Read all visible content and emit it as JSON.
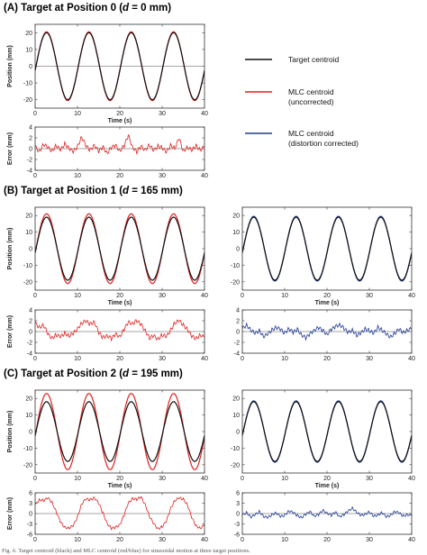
{
  "sections": [
    {
      "title_pre": "(A) Target at Position 0 (",
      "title_d": "d",
      "title_post": " = 0 mm)"
    },
    {
      "title_pre": "(B) Target at Position 1 (",
      "title_d": "d",
      "title_post": " = 165 mm)"
    },
    {
      "title_pre": "(C) Target at Position 2 (",
      "title_d": "d",
      "title_post": " = 195 mm)"
    }
  ],
  "legend": [
    {
      "label_lines": [
        "Target centroid"
      ],
      "color": "#111111"
    },
    {
      "label_lines": [
        "MLC centroid",
        "(uncorrected)"
      ],
      "color": "#e02020"
    },
    {
      "label_lines": [
        "MLC centroid",
        "(distortion corrected)"
      ],
      "color": "#1f3a93"
    }
  ],
  "caption": "Fig. 6. Target centroid (black) and MLC centroid (red/blue) for sinusoidal motion at three target positions.",
  "colors": {
    "target": "#111111",
    "uncorrected": "#e02020",
    "corrected": "#1f3a93"
  },
  "chart_data": [
    {
      "id": "A-position",
      "type": "line",
      "xlabel": "Time (s)",
      "ylabel": "Position (mm)",
      "xlim": [
        0,
        40
      ],
      "ylim": [
        -25,
        25
      ],
      "xticks": [
        0,
        10,
        20,
        30,
        40
      ],
      "yticks": [
        20,
        10,
        0,
        -10,
        -20
      ],
      "zero_line": true,
      "period_s": 10,
      "series": [
        {
          "name": "Target centroid",
          "kind": "target",
          "amplitude": 20
        },
        {
          "name": "MLC centroid (uncorrected)",
          "kind": "uncorrected",
          "amplitude": 20.5
        }
      ]
    },
    {
      "id": "A-error",
      "type": "line",
      "xlabel": "",
      "ylabel": "Error (mm)",
      "xlim": [
        0,
        40
      ],
      "ylim": [
        -4,
        4
      ],
      "xticks": [
        0,
        10,
        20,
        30,
        40
      ],
      "yticks": [
        4,
        2,
        0,
        -2,
        -4
      ],
      "zero_line": true,
      "series": [
        {
          "name": "MLC centroid (uncorrected) error",
          "kind": "uncorrected",
          "x": [
            0,
            1,
            2,
            3,
            4,
            5,
            6,
            7,
            8,
            9,
            10,
            11,
            12,
            13,
            14,
            15,
            16,
            17,
            18,
            19,
            20,
            21,
            22,
            23,
            24,
            25,
            26,
            27,
            28,
            29,
            30,
            31,
            32,
            33,
            34,
            35,
            36,
            37,
            38,
            39,
            40
          ],
          "y": [
            0.3,
            -0.5,
            0.8,
            0.2,
            -0.4,
            0.6,
            -0.3,
            0.9,
            0.1,
            -0.6,
            0.4,
            2.2,
            0.5,
            -0.3,
            0.7,
            -0.5,
            0.3,
            -0.8,
            0.2,
            0.6,
            -0.4,
            0.5,
            2.4,
            0.3,
            -0.6,
            0.4,
            -0.2,
            0.7,
            -0.4,
            0.5,
            0.2,
            -0.7,
            0.6,
            0.1,
            1.9,
            -0.5,
            0.3,
            -0.3,
            0.5,
            -0.2,
            0.3
          ]
        }
      ]
    },
    {
      "id": "B-position-uncorrected",
      "type": "line",
      "xlabel": "Time (s)",
      "ylabel": "Position (mm)",
      "xlim": [
        0,
        40
      ],
      "ylim": [
        -25,
        25
      ],
      "xticks": [
        0,
        10,
        20,
        30,
        40
      ],
      "yticks": [
        20,
        10,
        0,
        -10,
        -20
      ],
      "zero_line": false,
      "period_s": 10,
      "series": [
        {
          "name": "Target centroid",
          "kind": "target",
          "amplitude": 19
        },
        {
          "name": "MLC centroid (uncorrected)",
          "kind": "uncorrected",
          "amplitude": 21
        }
      ]
    },
    {
      "id": "B-position-corrected",
      "type": "line",
      "xlabel": "Time (s)",
      "ylabel": "",
      "xlim": [
        0,
        40
      ],
      "ylim": [
        -25,
        25
      ],
      "xticks": [
        0,
        10,
        20,
        30,
        40
      ],
      "yticks": [
        20,
        10,
        0,
        -10,
        -20
      ],
      "zero_line": false,
      "period_s": 10,
      "series": [
        {
          "name": "Target centroid",
          "kind": "target",
          "amplitude": 19
        },
        {
          "name": "MLC centroid (distortion corrected)",
          "kind": "corrected",
          "amplitude": 19.5
        }
      ]
    },
    {
      "id": "B-error-uncorrected",
      "type": "line",
      "xlabel": "",
      "ylabel": "Error (mm)",
      "xlim": [
        0,
        40
      ],
      "ylim": [
        -4,
        4
      ],
      "xticks": [
        0,
        10,
        20,
        30,
        40
      ],
      "yticks": [
        4,
        2,
        0,
        -2,
        -4
      ],
      "zero_line": true,
      "series": [
        {
          "name": "MLC centroid (uncorrected) error",
          "kind": "uncorrected",
          "x": [
            0,
            1,
            2,
            3,
            4,
            5,
            6,
            7,
            8,
            9,
            10,
            11,
            12,
            13,
            14,
            15,
            16,
            17,
            18,
            19,
            20,
            21,
            22,
            23,
            24,
            25,
            26,
            27,
            28,
            29,
            30,
            31,
            32,
            33,
            34,
            35,
            36,
            37,
            38,
            39,
            40
          ],
          "y": [
            1.5,
            0.8,
            1.2,
            -0.5,
            -1.2,
            -0.6,
            -1.0,
            -0.3,
            -0.8,
            -0.4,
            0.5,
            1.6,
            1.9,
            1.4,
            1.8,
            -0.2,
            -1.1,
            -0.7,
            -1.3,
            -0.5,
            -0.9,
            0.4,
            1.7,
            1.5,
            2.0,
            1.3,
            0.2,
            -1.2,
            -0.8,
            -1.4,
            -0.6,
            -1.0,
            0.3,
            1.6,
            2.0,
            1.2,
            0.4,
            -0.9,
            -1.3,
            -0.6,
            -1.1
          ]
        }
      ]
    },
    {
      "id": "B-error-corrected",
      "type": "line",
      "xlabel": "",
      "ylabel": "",
      "xlim": [
        0,
        40
      ],
      "ylim": [
        -4,
        4
      ],
      "xticks": [
        0,
        10,
        20,
        30,
        40
      ],
      "yticks": [
        4,
        2,
        0,
        -2,
        -4
      ],
      "zero_line": true,
      "series": [
        {
          "name": "MLC centroid (distortion corrected) error",
          "kind": "corrected",
          "x": [
            0,
            1,
            2,
            3,
            4,
            5,
            6,
            7,
            8,
            9,
            10,
            11,
            12,
            13,
            14,
            15,
            16,
            17,
            18,
            19,
            20,
            21,
            22,
            23,
            24,
            25,
            26,
            27,
            28,
            29,
            30,
            31,
            32,
            33,
            34,
            35,
            36,
            37,
            38,
            39,
            40
          ],
          "y": [
            0.5,
            1.2,
            0.3,
            -0.4,
            0.2,
            -0.9,
            -0.5,
            0.3,
            0.8,
            0.4,
            -0.3,
            0.6,
            -0.2,
            0.4,
            -0.6,
            -1.2,
            -0.4,
            0.3,
            0.7,
            0.2,
            -0.5,
            0.4,
            0.9,
            1.3,
            0.6,
            -0.2,
            0.3,
            -0.7,
            -0.3,
            0.5,
            0.2,
            -0.4,
            0.8,
            0.3,
            -0.5,
            -1.0,
            -0.3,
            0.4,
            -0.2,
            0.3,
            0.5
          ]
        }
      ]
    },
    {
      "id": "C-position-uncorrected",
      "type": "line",
      "xlabel": "Time (s)",
      "ylabel": "Position (mm)",
      "xlim": [
        0,
        40
      ],
      "ylim": [
        -25,
        25
      ],
      "xticks": [
        0,
        10,
        20,
        30,
        40
      ],
      "yticks": [
        20,
        10,
        0,
        -10,
        -20
      ],
      "zero_line": false,
      "period_s": 10,
      "series": [
        {
          "name": "Target centroid",
          "kind": "target",
          "amplitude": 18
        },
        {
          "name": "MLC centroid (uncorrected)",
          "kind": "uncorrected",
          "amplitude": 23
        }
      ]
    },
    {
      "id": "C-position-corrected",
      "type": "line",
      "xlabel": "Time (s)",
      "ylabel": "",
      "xlim": [
        0,
        40
      ],
      "ylim": [
        -25,
        25
      ],
      "xticks": [
        0,
        10,
        20,
        30,
        40
      ],
      "yticks": [
        20,
        10,
        0,
        -10,
        -20
      ],
      "zero_line": false,
      "period_s": 10,
      "series": [
        {
          "name": "Target centroid",
          "kind": "target",
          "amplitude": 18
        },
        {
          "name": "MLC centroid (distortion corrected)",
          "kind": "corrected",
          "amplitude": 18.5
        }
      ]
    },
    {
      "id": "C-error-uncorrected",
      "type": "line",
      "xlabel": "",
      "ylabel": "Error (mm)",
      "xlim": [
        0,
        40
      ],
      "ylim": [
        -6,
        6
      ],
      "xticks": [
        0,
        10,
        20,
        30,
        40
      ],
      "yticks": [
        6,
        3,
        0,
        -3,
        -6
      ],
      "zero_line": true,
      "series": [
        {
          "name": "MLC centroid (uncorrected) error",
          "kind": "uncorrected",
          "x": [
            0,
            1,
            2,
            3,
            4,
            5,
            6,
            7,
            8,
            9,
            10,
            11,
            12,
            13,
            14,
            15,
            16,
            17,
            18,
            19,
            20,
            21,
            22,
            23,
            24,
            25,
            26,
            27,
            28,
            29,
            30,
            31,
            32,
            33,
            34,
            35,
            36,
            37,
            38,
            39,
            40
          ],
          "y": [
            2.5,
            4.0,
            3.8,
            4.5,
            3.2,
            0.5,
            -2.5,
            -4.0,
            -4.2,
            -3.5,
            -1.0,
            2.8,
            4.2,
            4.0,
            4.6,
            3.0,
            0.2,
            -2.8,
            -4.3,
            -4.0,
            -3.2,
            -0.5,
            3.0,
            4.4,
            4.1,
            4.8,
            2.6,
            -0.8,
            -3.0,
            -4.4,
            -3.8,
            -2.2,
            1.5,
            3.8,
            4.5,
            4.2,
            2.5,
            -1.2,
            -3.6,
            -4.2,
            -3.4
          ]
        }
      ]
    },
    {
      "id": "C-error-corrected",
      "type": "line",
      "xlabel": "",
      "ylabel": "",
      "xlim": [
        0,
        40
      ],
      "ylim": [
        -6,
        6
      ],
      "xticks": [
        0,
        10,
        20,
        30,
        40
      ],
      "yticks": [
        6,
        3,
        0,
        -3,
        -6
      ],
      "zero_line": true,
      "series": [
        {
          "name": "MLC centroid (distortion corrected) error",
          "kind": "corrected",
          "x": [
            0,
            1,
            2,
            3,
            4,
            5,
            6,
            7,
            8,
            9,
            10,
            11,
            12,
            13,
            14,
            15,
            16,
            17,
            18,
            19,
            20,
            21,
            22,
            23,
            24,
            25,
            26,
            27,
            28,
            29,
            30,
            31,
            32,
            33,
            34,
            35,
            36,
            37,
            38,
            39,
            40
          ],
          "y": [
            -0.5,
            0.3,
            -1.0,
            -0.4,
            0.6,
            -0.8,
            -1.2,
            -0.3,
            0.2,
            -0.9,
            -0.5,
            0.8,
            0.3,
            -0.6,
            -1.1,
            -0.2,
            0.5,
            -0.7,
            -0.3,
            0.9,
            0.2,
            -0.5,
            0.4,
            -0.9,
            -0.3,
            0.7,
            1.6,
            0.4,
            -0.6,
            -0.2,
            0.5,
            -0.8,
            -0.4,
            0.3,
            -1.0,
            -0.5,
            0.6,
            0.2,
            -0.7,
            -0.3,
            -0.6
          ]
        }
      ]
    }
  ]
}
